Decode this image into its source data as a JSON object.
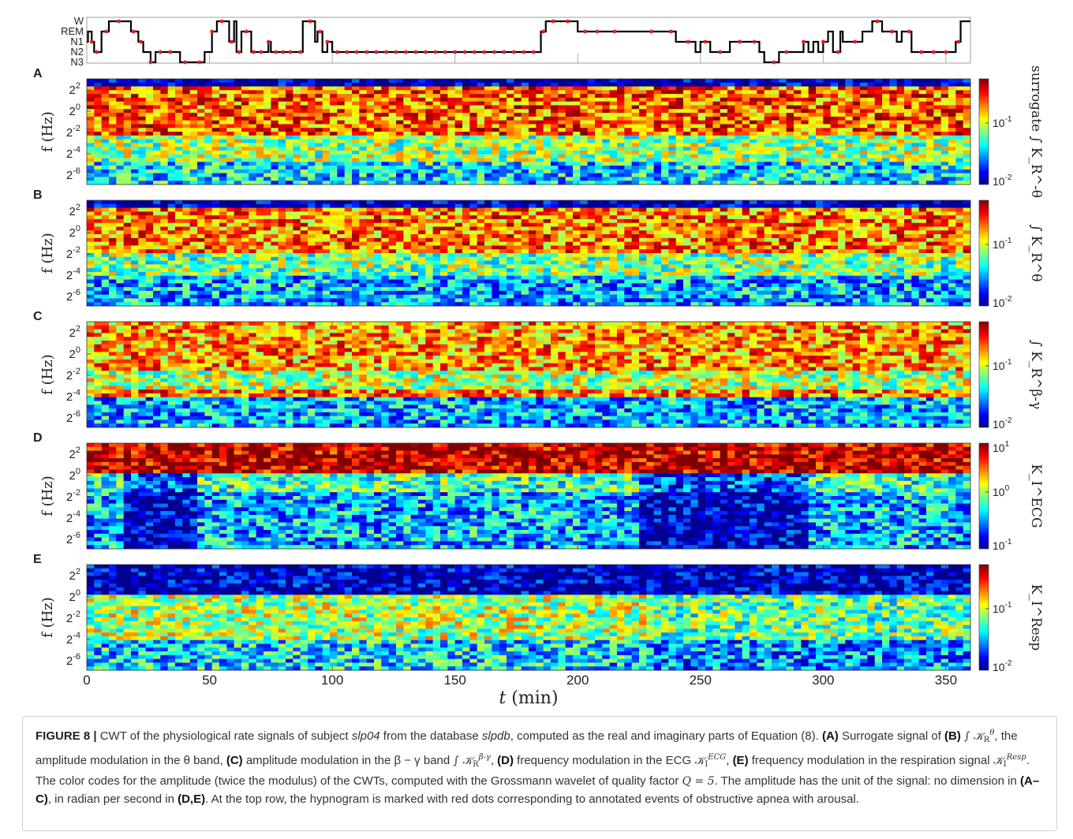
{
  "figure": {
    "hypnogram": {
      "stage_labels": [
        "W",
        "REM",
        "N1",
        "N2",
        "N3"
      ],
      "stages": [
        [
          0,
          "N1"
        ],
        [
          0.5,
          "REM"
        ],
        [
          2,
          "N1"
        ],
        [
          3,
          "N2"
        ],
        [
          6,
          "REM"
        ],
        [
          9,
          "W"
        ],
        [
          18,
          "REM"
        ],
        [
          21,
          "N1"
        ],
        [
          23,
          "N2"
        ],
        [
          26,
          "N3"
        ],
        [
          28,
          "N2"
        ],
        [
          38,
          "N3"
        ],
        [
          48,
          "N2"
        ],
        [
          51,
          "REM"
        ],
        [
          53,
          "W"
        ],
        [
          58,
          "N1"
        ],
        [
          60,
          "W"
        ],
        [
          61,
          "N2"
        ],
        [
          63,
          "REM"
        ],
        [
          67,
          "N2"
        ],
        [
          74,
          "N1"
        ],
        [
          75,
          "N2"
        ],
        [
          88,
          "W"
        ],
        [
          93,
          "N1"
        ],
        [
          94,
          "REM"
        ],
        [
          96,
          "N2"
        ],
        [
          98,
          "N1"
        ],
        [
          100,
          "N2"
        ],
        [
          185,
          "REM"
        ],
        [
          187,
          "W"
        ],
        [
          200,
          "REM"
        ],
        [
          240,
          "N1"
        ],
        [
          248,
          "N2"
        ],
        [
          250,
          "N1"
        ],
        [
          254,
          "N2"
        ],
        [
          262,
          "N1"
        ],
        [
          274,
          "N2"
        ],
        [
          276,
          "N3"
        ],
        [
          282,
          "N2"
        ],
        [
          292,
          "N1"
        ],
        [
          294,
          "N2"
        ],
        [
          296,
          "N1"
        ],
        [
          298,
          "N2"
        ],
        [
          300,
          "N1"
        ],
        [
          302,
          "REM"
        ],
        [
          304,
          "N2"
        ],
        [
          307,
          "REM"
        ],
        [
          308,
          "N1"
        ],
        [
          316,
          "REM"
        ],
        [
          320,
          "W"
        ],
        [
          324,
          "REM"
        ],
        [
          330,
          "N1"
        ],
        [
          332,
          "REM"
        ],
        [
          336,
          "N2"
        ],
        [
          354,
          "N1"
        ],
        [
          356,
          "W"
        ],
        [
          360,
          "W"
        ]
      ],
      "apnea_dots": [
        2,
        4,
        8,
        13,
        19,
        22,
        26,
        30,
        34,
        40,
        46,
        51,
        55,
        59,
        62,
        65,
        68,
        71,
        74,
        77,
        80,
        83,
        87,
        91,
        95,
        98,
        102,
        106,
        110,
        114,
        118,
        122,
        126,
        130,
        134,
        138,
        142,
        146,
        150,
        154,
        158,
        162,
        166,
        170,
        174,
        178,
        182,
        186,
        190,
        196,
        203,
        208,
        215,
        230,
        238,
        245,
        252,
        258,
        266,
        272,
        280,
        285,
        292,
        300,
        306,
        313,
        322,
        328,
        335,
        340,
        345,
        350,
        355
      ]
    },
    "panels": [
      {
        "letter": "A",
        "colorbar_ticks": [
          "10^-1",
          "10^-2"
        ],
        "colorbar_label": "surrogate ∫ K_R^-θ"
      },
      {
        "letter": "B",
        "colorbar_ticks": [
          "10^-1",
          "10^-2"
        ],
        "colorbar_label": "∫ K_R^θ"
      },
      {
        "letter": "C",
        "colorbar_ticks": [
          "10^-1",
          "10^-2"
        ],
        "colorbar_label": "∫ K_R^β-γ"
      },
      {
        "letter": "D",
        "colorbar_ticks": [
          "10^1",
          "10^0",
          "10^-1"
        ],
        "colorbar_label": "K_I^ECG"
      },
      {
        "letter": "E",
        "colorbar_ticks": [
          "10^-1",
          "10^-2"
        ],
        "colorbar_label": "K_I^Resp"
      }
    ],
    "y_ticks": [
      "2^2",
      "2^0",
      "2^-2",
      "2^-4",
      "2^-6"
    ],
    "y_label": "f (Hz)",
    "x_ticks": [
      0,
      50,
      100,
      150,
      200,
      250,
      300,
      350
    ],
    "x_label": "t (min)",
    "x_range": [
      0,
      360
    ]
  },
  "caption": {
    "label": "FIGURE 8 |",
    "text_1": " CWT of the physiological rate signals of subject ",
    "subject": "slp04",
    "text_2": " from the database ",
    "database": "slpdb",
    "text_3": ", computed as the real and imaginary parts of Equation (8). ",
    "ref_A": "(A)",
    "text_4": " Surrogate signal of ",
    "ref_B": "(B)",
    "text_5": ", the amplitude modulation in the θ band, ",
    "ref_C": "(C)",
    "text_6": " amplitude modulation in the β − γ band ",
    "ref_D": "(D)",
    "text_7": " frequency modulation in the ECG ",
    "ref_E": "(E)",
    "text_8": " frequency modulation in the respiration signal ",
    "text_9": ". The color codes for the amplitude (twice the modulus) of the CWTs, computed with the Grossmann wavelet of quality factor ",
    "qeq": "Q = 5",
    "text_10": ". The amplitude has the unit of the signal: no dimension in ",
    "ref_AC": "(A–C)",
    "text_11": ", in radian per second in ",
    "ref_DE": "(D,E)",
    "text_12": ". At the top row, the hypnogram is marked with red dots corresponding to annotated events of obstructive apnea with arousal."
  }
}
